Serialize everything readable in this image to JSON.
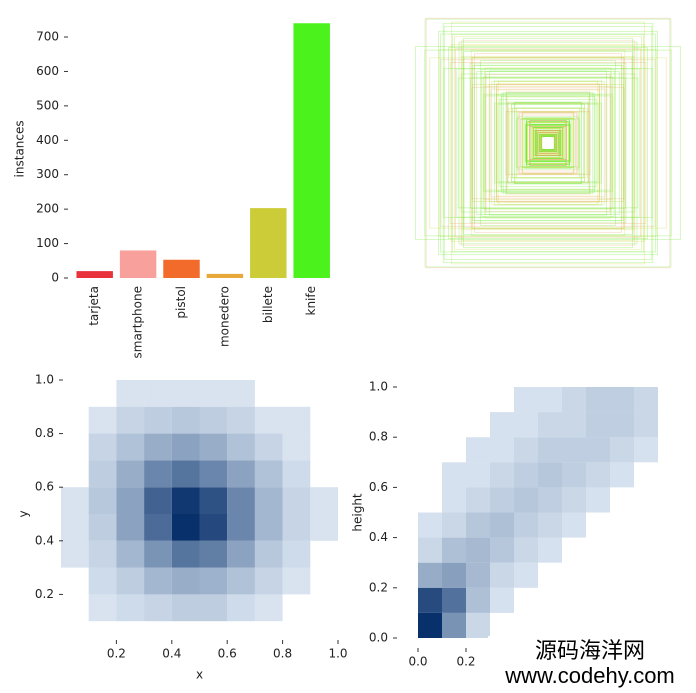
{
  "chart_data": [
    {
      "type": "bar",
      "ylabel": "instances",
      "categories": [
        "tarjeta",
        "smartphone",
        "pistol",
        "monedero",
        "billete",
        "knife"
      ],
      "values": [
        20,
        80,
        53,
        12,
        203,
        740
      ],
      "colors": [
        "#e8333b",
        "#f7a09c",
        "#f26b2a",
        "#e9a83a",
        "#cccc38",
        "#4cf21b"
      ],
      "ylim": [
        0,
        750
      ],
      "yticks": [
        0,
        100,
        200,
        300,
        400,
        500,
        600,
        700
      ]
    },
    {
      "type": "heatmap",
      "xlabel": "x",
      "ylabel": "y",
      "xbins": [
        0,
        0.1,
        0.2,
        0.3,
        0.4,
        0.5,
        0.6,
        0.7,
        0.8,
        0.9,
        1.0
      ],
      "ybins": [
        0,
        0.1,
        0.2,
        0.3,
        0.4,
        0.5,
        0.6,
        0.7,
        0.8,
        0.9,
        1.0
      ],
      "values": [
        [
          0,
          0,
          0,
          0,
          0,
          0,
          0,
          0,
          0,
          0
        ],
        [
          0,
          1,
          2,
          3,
          4,
          4,
          2,
          1,
          0,
          0
        ],
        [
          0,
          2,
          4,
          8,
          10,
          9,
          6,
          3,
          1,
          0
        ],
        [
          1,
          3,
          8,
          15,
          22,
          20,
          12,
          5,
          2,
          0
        ],
        [
          1,
          4,
          12,
          24,
          38,
          32,
          18,
          8,
          3,
          1
        ],
        [
          1,
          5,
          12,
          26,
          36,
          30,
          18,
          8,
          3,
          1
        ],
        [
          0,
          4,
          10,
          18,
          22,
          18,
          12,
          6,
          2,
          0
        ],
        [
          0,
          3,
          6,
          10,
          12,
          10,
          6,
          3,
          1,
          0
        ],
        [
          0,
          1,
          3,
          4,
          5,
          4,
          3,
          1,
          1,
          0
        ],
        [
          0,
          0,
          1,
          1,
          1,
          1,
          1,
          0,
          0,
          0
        ]
      ],
      "xlim": [
        0,
        1
      ],
      "ylim": [
        0,
        1
      ],
      "xticks": [
        0.2,
        0.4,
        0.6,
        0.8,
        {
          "value": 1,
          "label": "1.0"
        }
      ],
      "yticks": [
        0.2,
        0.4,
        0.6,
        0.8,
        {
          "value": 1,
          "label": "1.0"
        }
      ]
    },
    {
      "type": "heatmap",
      "ylabel": "height",
      "xbins": [
        0,
        0.1,
        0.2,
        0.3,
        0.4,
        0.5,
        0.6,
        0.7,
        0.8,
        0.9,
        1.0
      ],
      "ybins": [
        0,
        0.1,
        0.2,
        0.3,
        0.4,
        0.5,
        0.6,
        0.7,
        0.8,
        0.9,
        1.0
      ],
      "values": [
        [
          30,
          12,
          2,
          0,
          0,
          0,
          0,
          0,
          0,
          0
        ],
        [
          25,
          18,
          5,
          1,
          0,
          0,
          0,
          0,
          0,
          0
        ],
        [
          8,
          10,
          6,
          2,
          1,
          0,
          0,
          0,
          0,
          0
        ],
        [
          2,
          5,
          6,
          4,
          2,
          1,
          0,
          0,
          0,
          0
        ],
        [
          1,
          2,
          4,
          5,
          3,
          2,
          1,
          0,
          0,
          0
        ],
        [
          0,
          1,
          2,
          3,
          4,
          3,
          2,
          1,
          0,
          0
        ],
        [
          0,
          1,
          1,
          2,
          3,
          4,
          3,
          2,
          1,
          0
        ],
        [
          0,
          0,
          1,
          1,
          2,
          3,
          3,
          3,
          2,
          1
        ],
        [
          0,
          0,
          0,
          1,
          1,
          2,
          2,
          3,
          3,
          2
        ],
        [
          0,
          0,
          0,
          0,
          1,
          1,
          2,
          3,
          3,
          2
        ]
      ],
      "xlim": [
        0,
        1
      ],
      "ylim": [
        0,
        1
      ],
      "xticks": [
        {
          "value": 0,
          "label": "0.0"
        },
        0.2
      ],
      "yticks": [
        {
          "value": 0,
          "label": "0.0"
        },
        0.2,
        0.4,
        0.6,
        0.8,
        {
          "value": 1,
          "label": "1.0"
        }
      ]
    }
  ],
  "watermark": {
    "line1": "源码海洋网",
    "line2": "www.codehy.com"
  }
}
